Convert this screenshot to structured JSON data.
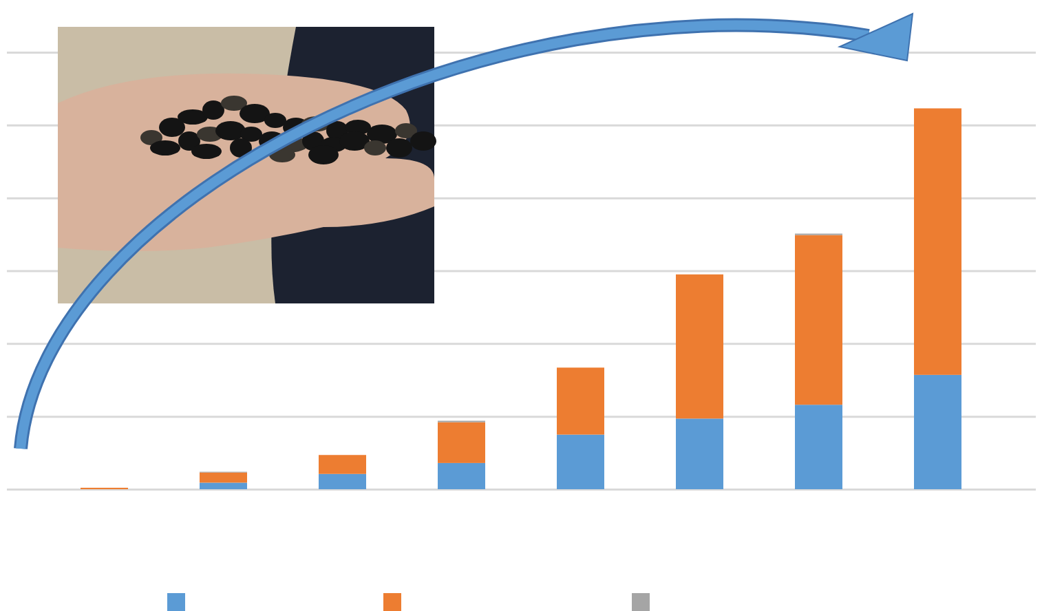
{
  "chart_data": {
    "type": "bar",
    "stacked": true,
    "categories": [
      null,
      null,
      null,
      null,
      null,
      null,
      null,
      null
    ],
    "series": [
      {
        "color": "#5b9bd5",
        "values": [
          0,
          0.09,
          0.21,
          0.36,
          0.75,
          0.97,
          1.16,
          1.57
        ]
      },
      {
        "color": "#ed7d31",
        "values": [
          0.02,
          0.14,
          0.26,
          0.56,
          0.92,
          1.98,
          2.33,
          3.66
        ]
      },
      {
        "color": "#a5a5a5",
        "values": [
          0,
          0.01,
          0,
          0.02,
          0,
          0,
          0.02,
          0
        ]
      }
    ],
    "ylim": [
      0,
      6
    ],
    "yticks": [
      0,
      1,
      2,
      3,
      4,
      5,
      6
    ],
    "grid": true,
    "tick_labels": false,
    "legend": "bottom"
  }
}
